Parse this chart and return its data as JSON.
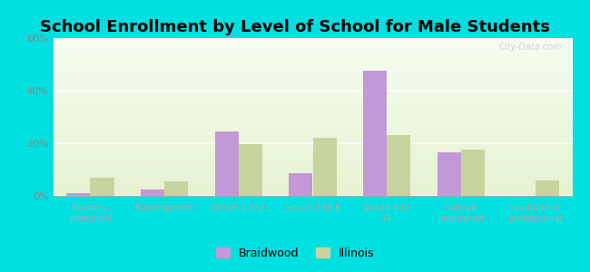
{
  "title": "School Enrollment by Level of School for Male Students",
  "categories": [
    "Nursery,\npreschool",
    "Kindergarten",
    "Grade 1 to 4",
    "Grade 5 to 8",
    "Grade 9 to\n12",
    "College\nundergrad",
    "Graduate or\nprofessional"
  ],
  "braidwood": [
    1.0,
    2.5,
    24.5,
    8.5,
    47.5,
    16.5,
    0.0
  ],
  "illinois": [
    7.0,
    5.5,
    19.5,
    22.0,
    23.0,
    17.5,
    6.0
  ],
  "bar_color_braidwood": "#c299d6",
  "bar_color_illinois": "#c8d4a0",
  "background_color": "#00e0e0",
  "ylim": [
    0,
    60
  ],
  "yticks": [
    0,
    20,
    40,
    60
  ],
  "ytick_labels": [
    "0%",
    "20%",
    "40%",
    "60%"
  ],
  "title_fontsize": 13,
  "legend_labels": [
    "Braidwood",
    "Illinois"
  ],
  "watermark": "City-Data.com"
}
